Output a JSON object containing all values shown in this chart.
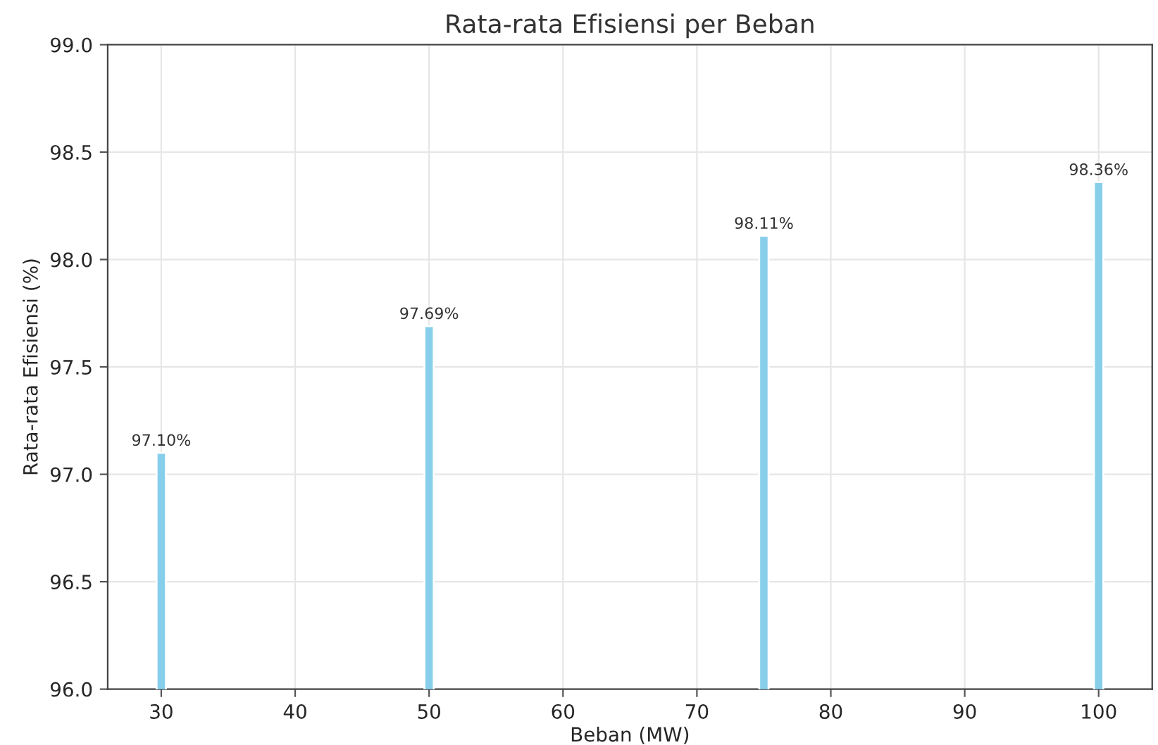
{
  "chart_data": {
    "type": "bar",
    "title": "Rata-rata Efisiensi per Beban",
    "xlabel": "Beban (MW)",
    "ylabel": "Rata-rata Efisiensi (%)",
    "x": [
      30,
      50,
      75,
      100
    ],
    "series": [
      {
        "color": "#87ceeb",
        "values": [
          97.1,
          97.69,
          98.11,
          98.36
        ],
        "value_labels": [
          "97.10%",
          "97.69%",
          "98.11%",
          "98.36%"
        ]
      }
    ],
    "xlim": [
      26,
      104
    ],
    "xticks": [
      30,
      40,
      50,
      60,
      70,
      80,
      90,
      100
    ],
    "ylim": [
      96.0,
      99.0
    ],
    "yticks": [
      {
        "value": 96.0,
        "label": "96.0"
      },
      {
        "value": 96.5,
        "label": "96.5"
      },
      {
        "value": 97.0,
        "label": "97.0"
      },
      {
        "value": 97.5,
        "label": "97.5"
      },
      {
        "value": 98.0,
        "label": "98.0"
      },
      {
        "value": 98.5,
        "label": "98.5"
      },
      {
        "value": 99.0,
        "label": "99.0"
      }
    ],
    "grid": true
  }
}
